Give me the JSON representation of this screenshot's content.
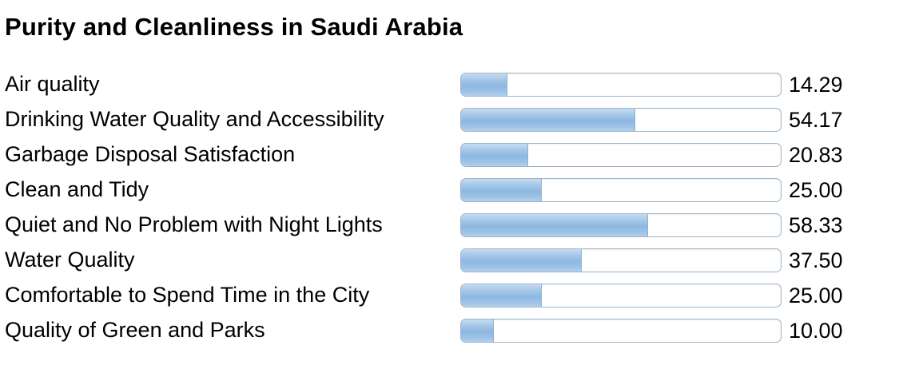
{
  "title": "Purity and Cleanliness in Saudi Arabia",
  "chart_data": {
    "type": "bar",
    "orientation": "horizontal",
    "title": "Purity and Cleanliness in Saudi Arabia",
    "categories": [
      "Air quality",
      "Drinking Water Quality and Accessibility",
      "Garbage Disposal Satisfaction",
      "Clean and Tidy",
      "Quiet and No Problem with Night Lights",
      "Water Quality",
      "Comfortable to Spend Time in the City",
      "Quality of Green and Parks"
    ],
    "values": [
      14.29,
      54.17,
      20.83,
      25.0,
      58.33,
      37.5,
      25.0,
      10.0
    ],
    "value_labels": [
      "14.29",
      "54.17",
      "20.83",
      "25.00",
      "58.33",
      "37.50",
      "25.00",
      "10.00"
    ],
    "xlim": [
      0,
      100
    ],
    "grid": false,
    "legend": "none",
    "bar_fill_color": "#9dc2e6",
    "bar_track_color": "#ffffff",
    "bar_border_color": "#9cb4c9"
  }
}
